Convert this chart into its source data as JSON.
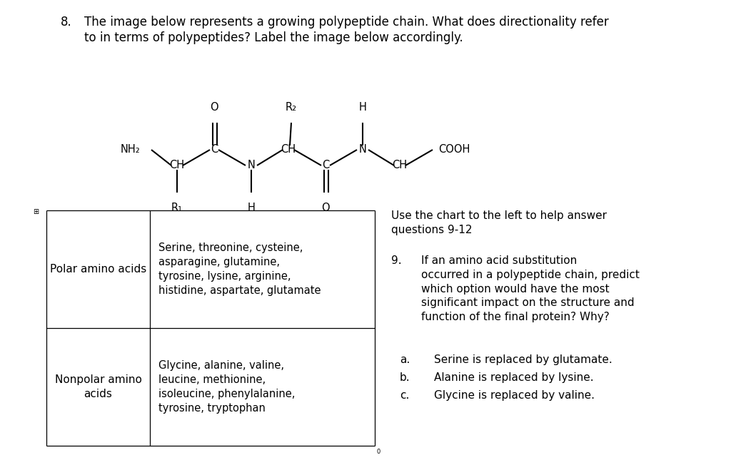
{
  "background_color": "#ffffff",
  "title_num": "8.",
  "title_line1": "The image below represents a growing polypeptide chain. What does directionality refer",
  "title_line2": "to in terms of polypeptides? Label the image below accordingly.",
  "font_size_title": 12,
  "font_size_body": 11,
  "font_size_chem": 10.5,
  "polar_label": "Polar amino acids",
  "polar_content": "Serine, threonine, cysteine,\nasparagine, glutamine,\ntyrosine, lysine, arginine,\nhistidine, aspartate, glutamate",
  "nonpolar_label": "Nonpolar amino\nacids",
  "nonpolar_content": "Glycine, alanine, valine,\nleucine, methionine,\nisoleucine, phenylalanine,\ntyrosine, tryptophan",
  "right_header": "Use the chart to the left to help answer\nquestions 9-12",
  "q9_num": "9.",
  "q9_text": "If an amino acid substitution\noccurred in a polypeptide chain, predict\nwhich option would have the most\nsignificant impact on the structure and\nfunction of the final protein? Why?",
  "qa_letter": "a.",
  "qa_text": "Serine is replaced by glutamate.",
  "qb_letter": "b.",
  "qb_text": "Alanine is replaced by lysine.",
  "qc_letter": "c.",
  "qc_text": "Glycine is replaced by valine."
}
